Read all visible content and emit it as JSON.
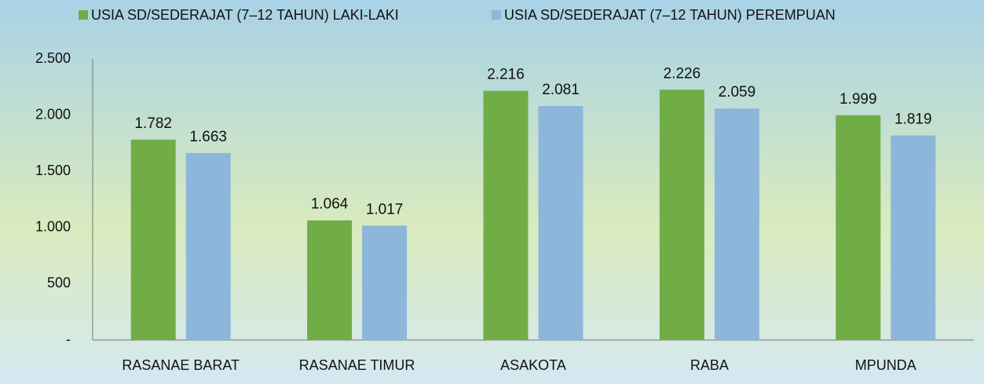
{
  "chart_data": {
    "type": "bar",
    "categories": [
      "RASANAE BARAT",
      "RASANAE TIMUR",
      "ASAKOTA",
      "RABA",
      "MPUNDA"
    ],
    "series": [
      {
        "name": "USIA SD/SEDERAJAT (7–12 TAHUN) LAKI-LAKI",
        "color": "#70ad47",
        "values": [
          1782,
          1064,
          2216,
          2226,
          1999
        ],
        "value_labels": [
          "1.782",
          "1.064",
          "2.216",
          "2.226",
          "1.999"
        ]
      },
      {
        "name": "USIA SD/SEDERAJAT (7–12 TAHUN) PEREMPUAN",
        "color": "#8db7da",
        "values": [
          1663,
          1017,
          2081,
          2059,
          1819
        ],
        "value_labels": [
          "1.663",
          "1.017",
          "2.081",
          "2.059",
          "1.819"
        ]
      }
    ],
    "ylim": [
      0,
      2500
    ],
    "yticks": [
      {
        "value": 0,
        "label": "-"
      },
      500,
      {
        "value": 1000,
        "label": "1.000"
      },
      {
        "value": 1500,
        "label": "1.500"
      },
      {
        "value": 2000,
        "label": "2.000"
      },
      {
        "value": 2500,
        "label": "2.500"
      }
    ],
    "legend": "top"
  }
}
